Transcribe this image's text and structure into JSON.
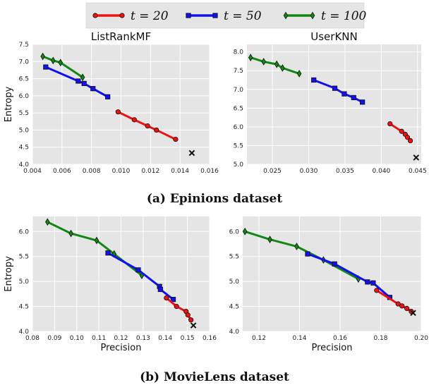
{
  "legend": {
    "entries": [
      {
        "label": "t = 20",
        "color": "#ee1111",
        "marker": "circle"
      },
      {
        "label": "t = 50",
        "color": "#1111ee",
        "marker": "square"
      },
      {
        "label": "t = 100",
        "color": "#118811",
        "marker": "diamond"
      }
    ]
  },
  "captions": {
    "a": "(a) Epinions dataset",
    "b": "(b) MovieLens dataset"
  },
  "chart_data": [
    {
      "type": "line",
      "title": "ListRankMF",
      "xlabel": "",
      "ylabel": "Entropy",
      "xlim": [
        0.004,
        0.016
      ],
      "ylim": [
        4.0,
        7.5
      ],
      "xticks": [
        "0.004",
        "0.006",
        "0.008",
        "0.010",
        "0.012",
        "0.014",
        "0.016"
      ],
      "yticks": [
        "4.0",
        "4.5",
        "5.0",
        "5.5",
        "6.0",
        "6.5",
        "7.0",
        "7.5"
      ],
      "series": [
        {
          "name": "t = 20",
          "x": [
            0.0098,
            0.0109,
            0.0118,
            0.0124,
            0.0137
          ],
          "y": [
            5.53,
            5.3,
            5.12,
            5.0,
            4.73
          ]
        },
        {
          "name": "t = 50",
          "x": [
            0.0049,
            0.0071,
            0.0075,
            0.0081,
            0.0091
          ],
          "y": [
            6.84,
            6.43,
            6.36,
            6.21,
            5.97
          ]
        },
        {
          "name": "t = 100",
          "x": [
            0.0047,
            0.0054,
            0.0059,
            0.0074
          ],
          "y": [
            7.15,
            7.03,
            6.97,
            6.54
          ]
        }
      ],
      "reference_point": {
        "x": 0.0148,
        "y": 4.33
      }
    },
    {
      "type": "line",
      "title": "UserKNN",
      "xlabel": "",
      "ylabel": "",
      "xlim": [
        0.0215,
        0.0455
      ],
      "ylim": [
        5.0,
        8.2
      ],
      "xticks": [
        "0.025",
        "0.030",
        "0.035",
        "0.040",
        "0.045"
      ],
      "yticks": [
        "5.0",
        "5.5",
        "6.0",
        "6.5",
        "7.0",
        "7.5",
        "8.0"
      ],
      "series": [
        {
          "name": "t = 20",
          "x": [
            0.0412,
            0.0428,
            0.0433,
            0.0436,
            0.044
          ],
          "y": [
            6.08,
            5.88,
            5.8,
            5.72,
            5.63
          ]
        },
        {
          "name": "t = 50",
          "x": [
            0.0307,
            0.0336,
            0.0349,
            0.0362,
            0.0374
          ],
          "y": [
            7.25,
            7.03,
            6.88,
            6.78,
            6.66
          ]
        },
        {
          "name": "t = 100",
          "x": [
            0.022,
            0.0238,
            0.0256,
            0.0264,
            0.0287
          ],
          "y": [
            7.85,
            7.74,
            7.67,
            7.57,
            7.42
          ]
        }
      ],
      "reference_point": {
        "x": 0.0448,
        "y": 5.18
      }
    },
    {
      "type": "line",
      "title": "",
      "xlabel": "Precision",
      "ylabel": "Entropy",
      "xlim": [
        0.08,
        0.16
      ],
      "ylim": [
        4.0,
        6.3
      ],
      "xticks": [
        "0.08",
        "0.09",
        "0.10",
        "0.11",
        "0.12",
        "0.13",
        "0.14",
        "0.15",
        "0.16"
      ],
      "yticks": [
        "4.0",
        "4.5",
        "5.0",
        "5.5",
        "6.0"
      ],
      "series": [
        {
          "name": "t = 20",
          "x": [
            0.1405,
            0.1451,
            0.1494,
            0.1502,
            0.1516
          ],
          "y": [
            4.67,
            4.5,
            4.4,
            4.33,
            4.23
          ]
        },
        {
          "name": "t = 50",
          "x": [
            0.1141,
            0.1278,
            0.1374,
            0.1378,
            0.1436
          ],
          "y": [
            5.57,
            5.23,
            4.9,
            4.84,
            4.64
          ]
        },
        {
          "name": "t = 100",
          "x": [
            0.0868,
            0.0974,
            0.109,
            0.1169,
            0.1294
          ],
          "y": [
            6.19,
            5.96,
            5.82,
            5.55,
            5.12
          ]
        }
      ],
      "reference_point": {
        "x": 0.1527,
        "y": 4.12
      }
    },
    {
      "type": "line",
      "title": "",
      "xlabel": "Precision",
      "ylabel": "",
      "xlim": [
        0.112,
        0.2
      ],
      "ylim": [
        4.0,
        6.3
      ],
      "xticks": [
        "0.12",
        "0.14",
        "0.16",
        "0.18",
        "0.20"
      ],
      "yticks": [
        "4.0",
        "4.5",
        "5.0",
        "5.5",
        "6.0"
      ],
      "series": [
        {
          "name": "t = 20",
          "x": [
            0.178,
            0.1886,
            0.1905,
            0.1929,
            0.1951
          ],
          "y": [
            4.82,
            4.55,
            4.51,
            4.46,
            4.4
          ]
        },
        {
          "name": "t = 50",
          "x": [
            0.144,
            0.1573,
            0.1735,
            0.1763,
            0.1845
          ],
          "y": [
            5.55,
            5.35,
            4.99,
            4.97,
            4.68
          ]
        },
        {
          "name": "t = 100",
          "x": [
            0.1131,
            0.1254,
            0.1386,
            0.1518,
            0.169
          ],
          "y": [
            6.0,
            5.84,
            5.7,
            5.43,
            5.05
          ]
        }
      ],
      "reference_point": {
        "x": 0.196,
        "y": 4.37
      }
    }
  ]
}
